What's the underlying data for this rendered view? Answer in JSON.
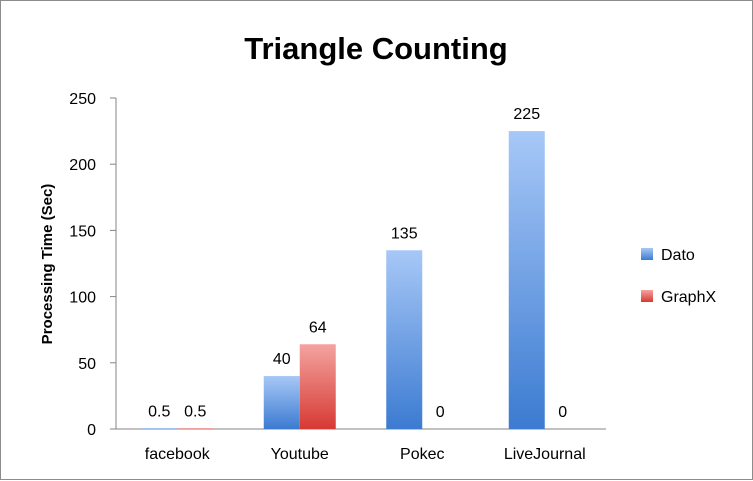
{
  "chart_data": {
    "type": "bar",
    "title": "Triangle Counting",
    "ylabel": "Processing Time (Sec)",
    "xlabel": "",
    "categories": [
      "facebook",
      "Youtube",
      "Pokec",
      "LiveJournal"
    ],
    "series": [
      {
        "name": "Dato",
        "values": [
          0.5,
          40,
          135,
          225
        ],
        "labels": [
          "0.5",
          "40",
          "135",
          "225"
        ],
        "color": "#4a86d8"
      },
      {
        "name": "GraphX",
        "values": [
          0.5,
          64,
          0,
          0
        ],
        "labels": [
          "0.5",
          "64",
          "0",
          "0"
        ],
        "color": "#d8413c"
      }
    ],
    "ylim": [
      0,
      250
    ],
    "yticks": [
      "0",
      "50",
      "100",
      "150",
      "200",
      "250"
    ],
    "grid": false,
    "legend": "right"
  }
}
